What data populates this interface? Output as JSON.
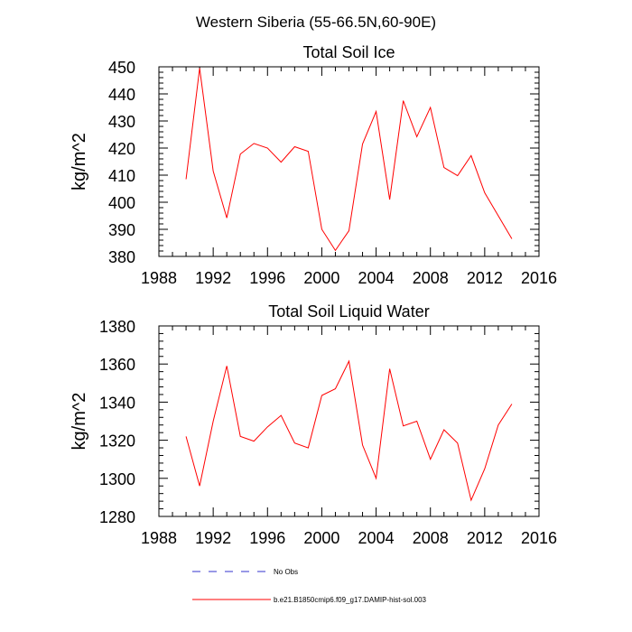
{
  "figure": {
    "suptitle": "Western Siberia (55-66.5N,60-90E)",
    "legend": [
      {
        "label": "No Obs",
        "color": "#3333cc",
        "style": "dashed"
      },
      {
        "label": "b.e21.B1850cmip6.f09_g17.DAMIP-hist-sol.003",
        "color": "#ff0000",
        "style": "solid"
      }
    ]
  },
  "chart_data": [
    {
      "type": "line",
      "title": "Total Soil Ice",
      "xlabel": "",
      "ylabel": "kg/m^2",
      "xlim": [
        1988,
        2016
      ],
      "ylim": [
        380,
        450
      ],
      "xticks": [
        "1988",
        "1992",
        "1996",
        "2000",
        "2004",
        "2008",
        "2012",
        "2016"
      ],
      "yticks": [
        "380",
        "390",
        "400",
        "410",
        "420",
        "430",
        "440",
        "450"
      ],
      "grid": false,
      "series": [
        {
          "name": "b.e21.B1850cmip6.f09_g17.DAMIP-hist-sol.003",
          "color": "#ff0000",
          "x": [
            1990,
            1991,
            1992,
            1993,
            1994,
            1995,
            1996,
            1997,
            1998,
            1999,
            2000,
            2001,
            2002,
            2003,
            2004,
            2005,
            2006,
            2007,
            2008,
            2009,
            2010,
            2011,
            2012,
            2013,
            2014
          ],
          "y": [
            408.5,
            449.5,
            411.5,
            394.2,
            417.8,
            421.7,
            420.0,
            414.8,
            420.5,
            418.8,
            390.0,
            382.2,
            389.5,
            421.5,
            433.5,
            401.0,
            437.5,
            424.2,
            435.0,
            412.8,
            409.8,
            417.2,
            403.5,
            395.0,
            386.5
          ]
        }
      ]
    },
    {
      "type": "line",
      "title": "Total Soil Liquid Water",
      "xlabel": "",
      "ylabel": "kg/m^2",
      "xlim": [
        1988,
        2016
      ],
      "ylim": [
        1280,
        1380
      ],
      "xticks": [
        "1988",
        "1992",
        "1996",
        "2000",
        "2004",
        "2008",
        "2012",
        "2016"
      ],
      "yticks": [
        "1280",
        "1300",
        "1320",
        "1340",
        "1360",
        "1380"
      ],
      "grid": false,
      "series": [
        {
          "name": "b.e21.B1850cmip6.f09_g17.DAMIP-hist-sol.003",
          "color": "#ff0000",
          "x": [
            1990,
            1991,
            1992,
            1993,
            1994,
            1995,
            1996,
            1997,
            1998,
            1999,
            2000,
            2001,
            2002,
            2003,
            2004,
            2005,
            2006,
            2007,
            2008,
            2009,
            2010,
            2011,
            2012,
            2013,
            2014
          ],
          "y": [
            1322,
            1296,
            1330,
            1359,
            1322,
            1319.5,
            1327,
            1333,
            1318.5,
            1316,
            1343.5,
            1347,
            1361.5,
            1317.5,
            1300,
            1357.5,
            1327.5,
            1330,
            1310,
            1325.5,
            1318.5,
            1288.5,
            1305,
            1328,
            1339
          ]
        }
      ]
    }
  ]
}
